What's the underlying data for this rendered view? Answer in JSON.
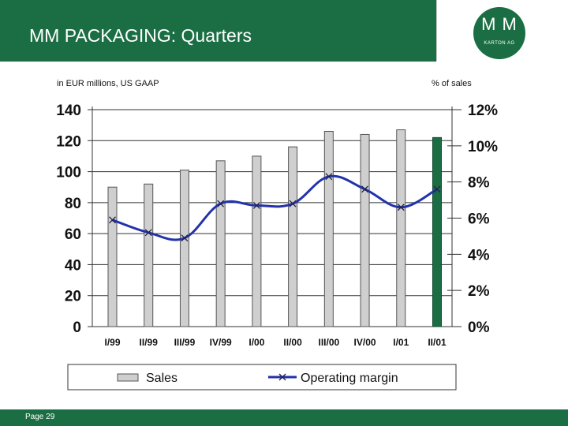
{
  "header": {
    "title": "MM PACKAGING: Quarters"
  },
  "logo": {
    "text": "M M",
    "subtitle": "KARTON AG"
  },
  "footer": {
    "page_label": "Page 29"
  },
  "colors": {
    "brand_green": "#1b6e44",
    "bar_gray": "#cfcfcf",
    "bar_highlight": "#1b6e44",
    "line_blue": "#2233aa"
  },
  "chart_data": {
    "type": "bar",
    "title": "",
    "left_axis_label": "in EUR millions, US GAAP",
    "right_axis_label": "% of  sales",
    "categories": [
      "I/99",
      "II/99",
      "III/99",
      "IV/99",
      "I/00",
      "II/00",
      "III/00",
      "IV/00",
      "I/01",
      "II/01"
    ],
    "series": [
      {
        "name": "Sales",
        "type": "bar",
        "axis": "left",
        "values": [
          90,
          92,
          101,
          107,
          110,
          116,
          126,
          124,
          127,
          122
        ],
        "highlight_index": 9
      },
      {
        "name": "Operating margin",
        "type": "line",
        "axis": "right",
        "values": [
          5.9,
          5.2,
          4.9,
          6.8,
          6.7,
          6.8,
          8.3,
          7.6,
          6.6,
          7.6
        ]
      }
    ],
    "ylim_left": [
      0,
      140
    ],
    "yticks_left": [
      0,
      20,
      40,
      60,
      80,
      100,
      120,
      140
    ],
    "ylim_right": [
      0,
      12
    ],
    "yticks_right": [
      "0%",
      "2%",
      "4%",
      "6%",
      "8%",
      "10%",
      "12%"
    ],
    "grid": true,
    "legend": {
      "position": "bottom",
      "entries": [
        "Sales",
        "Operating margin"
      ]
    }
  }
}
